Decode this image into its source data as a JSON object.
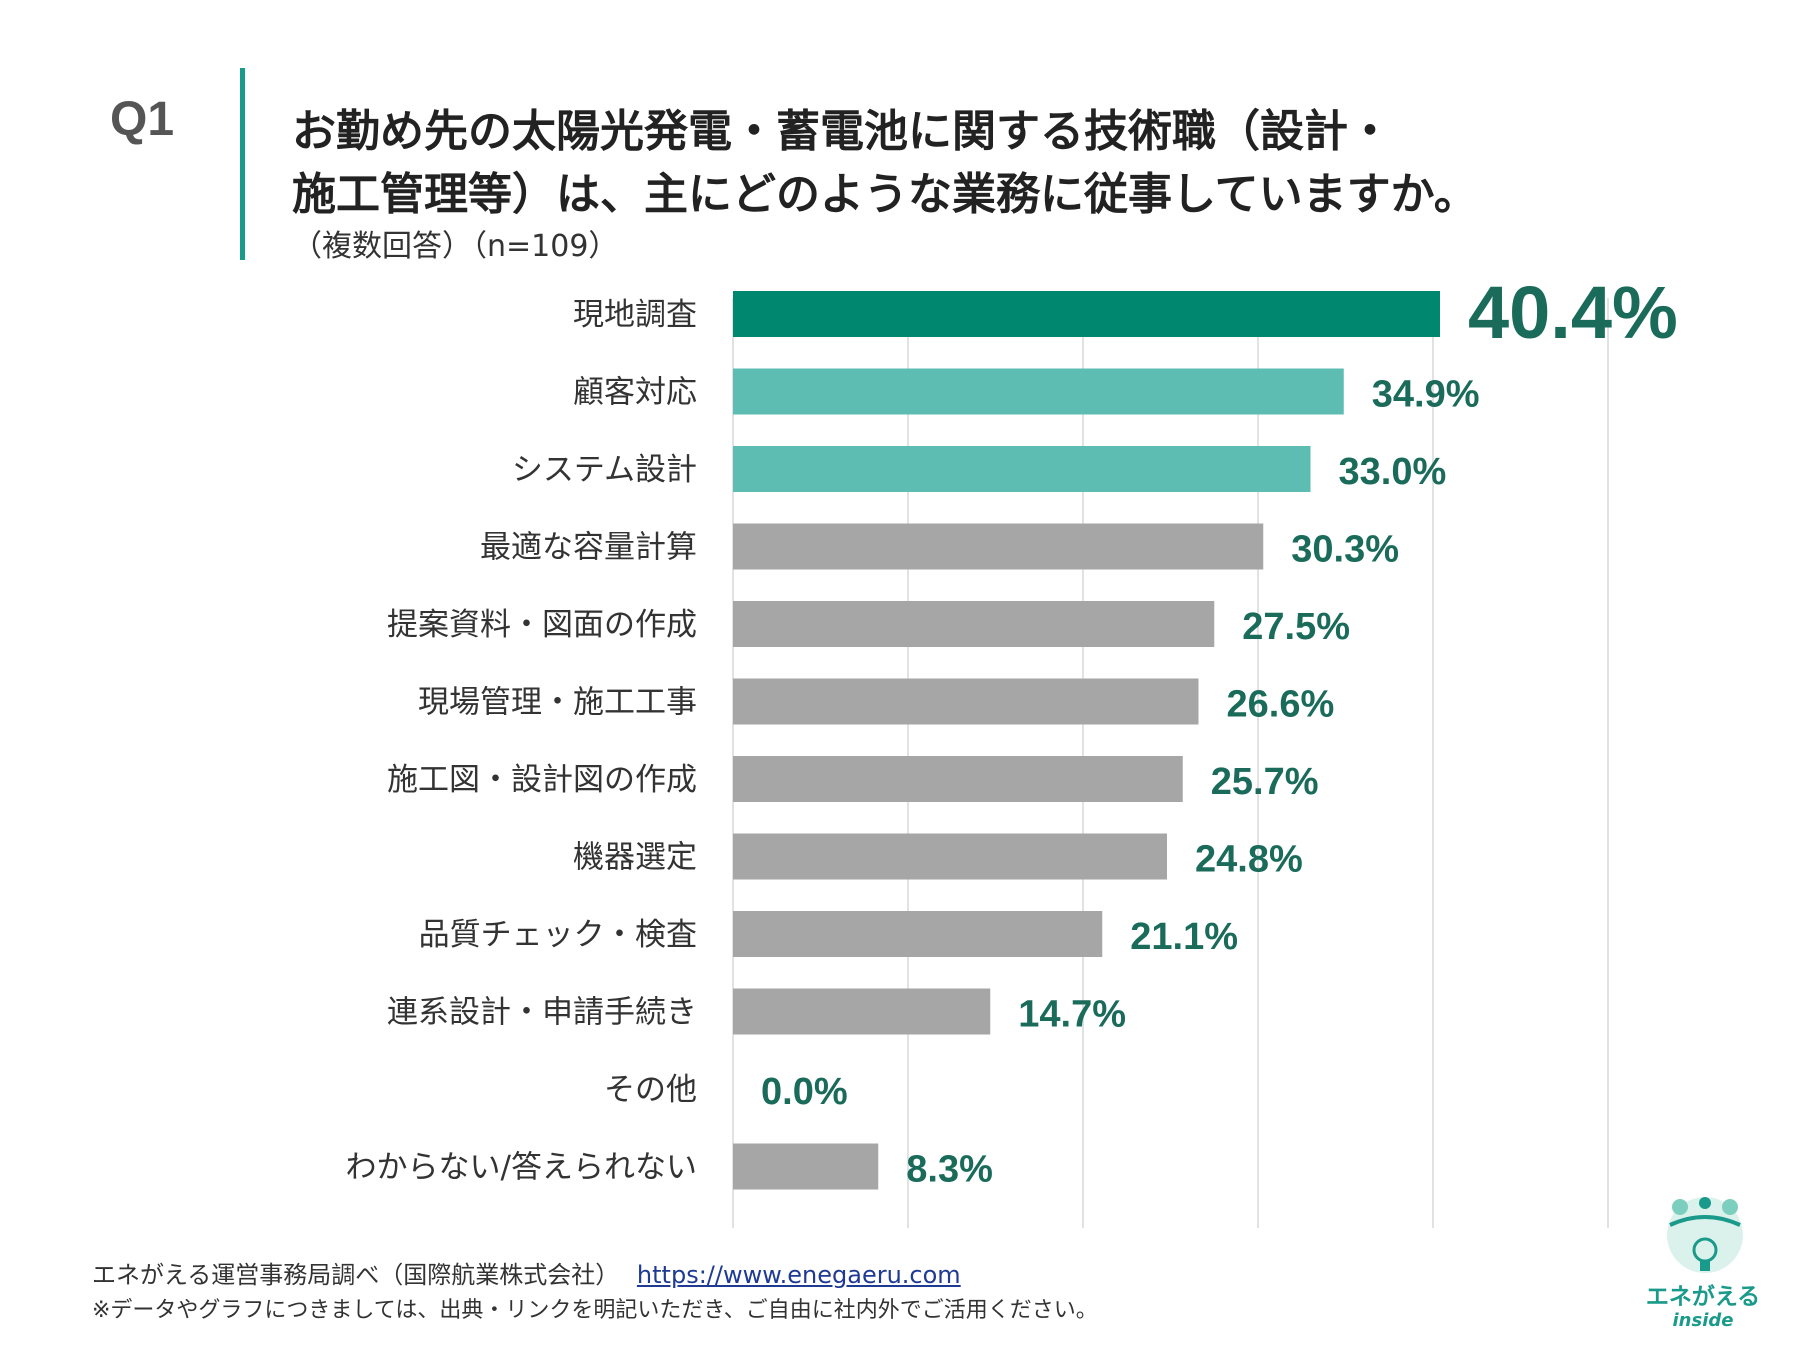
{
  "header": {
    "q_label": "Q1",
    "title_line1": "お勤め先の太陽光発電・蓄電池に関する技術職（設計・",
    "title_line2": "施工管理等）は、主にどのような業務に従事していますか。",
    "subtitle": "（複数回答）（n=109）"
  },
  "chart_data": {
    "type": "bar",
    "orientation": "horizontal",
    "categories": [
      "現地調査",
      "顧客対応",
      "システム設計",
      "最適な容量計算",
      "提案資料・図面の作成",
      "現場管理・施工工事",
      "施工図・設計図の作成",
      "機器選定",
      "品質チェック・検査",
      "連系設計・申請手続き",
      "その他",
      "わからない/答えられない"
    ],
    "values": [
      40.4,
      34.9,
      33.0,
      30.3,
      27.5,
      26.6,
      25.7,
      24.8,
      21.1,
      14.7,
      0.0,
      8.3
    ],
    "labels": [
      "40.4%",
      "34.9%",
      "33.0%",
      "30.3%",
      "27.5%",
      "26.6%",
      "25.7%",
      "24.8%",
      "21.1%",
      "14.7%",
      "0.0%",
      "8.3%"
    ],
    "xlim": [
      0,
      50
    ],
    "grid": true,
    "colors": [
      "#00876f",
      "#5dbdb3",
      "#5dbdb3",
      "#a6a6a6",
      "#a6a6a6",
      "#a6a6a6",
      "#a6a6a6",
      "#a6a6a6",
      "#a6a6a6",
      "#a6a6a6",
      "#a6a6a6",
      "#a6a6a6"
    ],
    "label_color": "#1a6b5a",
    "grid_color": "#d9d9d9"
  },
  "footer": {
    "source_text": "エネがえる運営事務局調べ（国際航業株式会社）",
    "source_link": "https://www.enegaeru.com",
    "note": "※データやグラフにつきましては、出典・リンクを明記いただき、ご自由に社内外でご活用ください。"
  },
  "logo": {
    "name": "エネがえる",
    "sub": "inside",
    "icon": "lightbulb-mascot-icon"
  }
}
